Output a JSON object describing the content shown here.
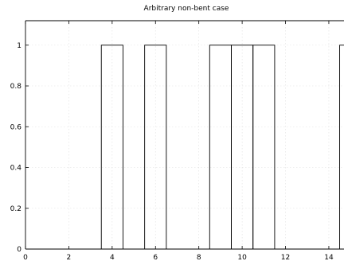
{
  "chart_data": {
    "type": "bar",
    "title": "Arbitrary non-bent case",
    "xlabel": "",
    "ylabel": "",
    "xlim": [
      0,
      14.7
    ],
    "ylim": [
      0,
      1.12
    ],
    "bar_width": 1,
    "grid": true,
    "legend": "none",
    "x_ticks": [
      0,
      2,
      4,
      6,
      8,
      10,
      12,
      14
    ],
    "y_ticks": [
      0,
      0.2,
      0.4,
      0.6,
      0.8,
      1
    ],
    "y_tick_labels": [
      "0",
      "0.2",
      "0.4",
      "0.6",
      "0.8",
      "1"
    ],
    "x": [
      4,
      6,
      9,
      10,
      11,
      15
    ],
    "values": [
      1,
      1,
      1,
      1,
      1,
      1
    ],
    "colors": {
      "edge": "#000000",
      "fill": "none",
      "grid": "#e0e0e0"
    }
  }
}
